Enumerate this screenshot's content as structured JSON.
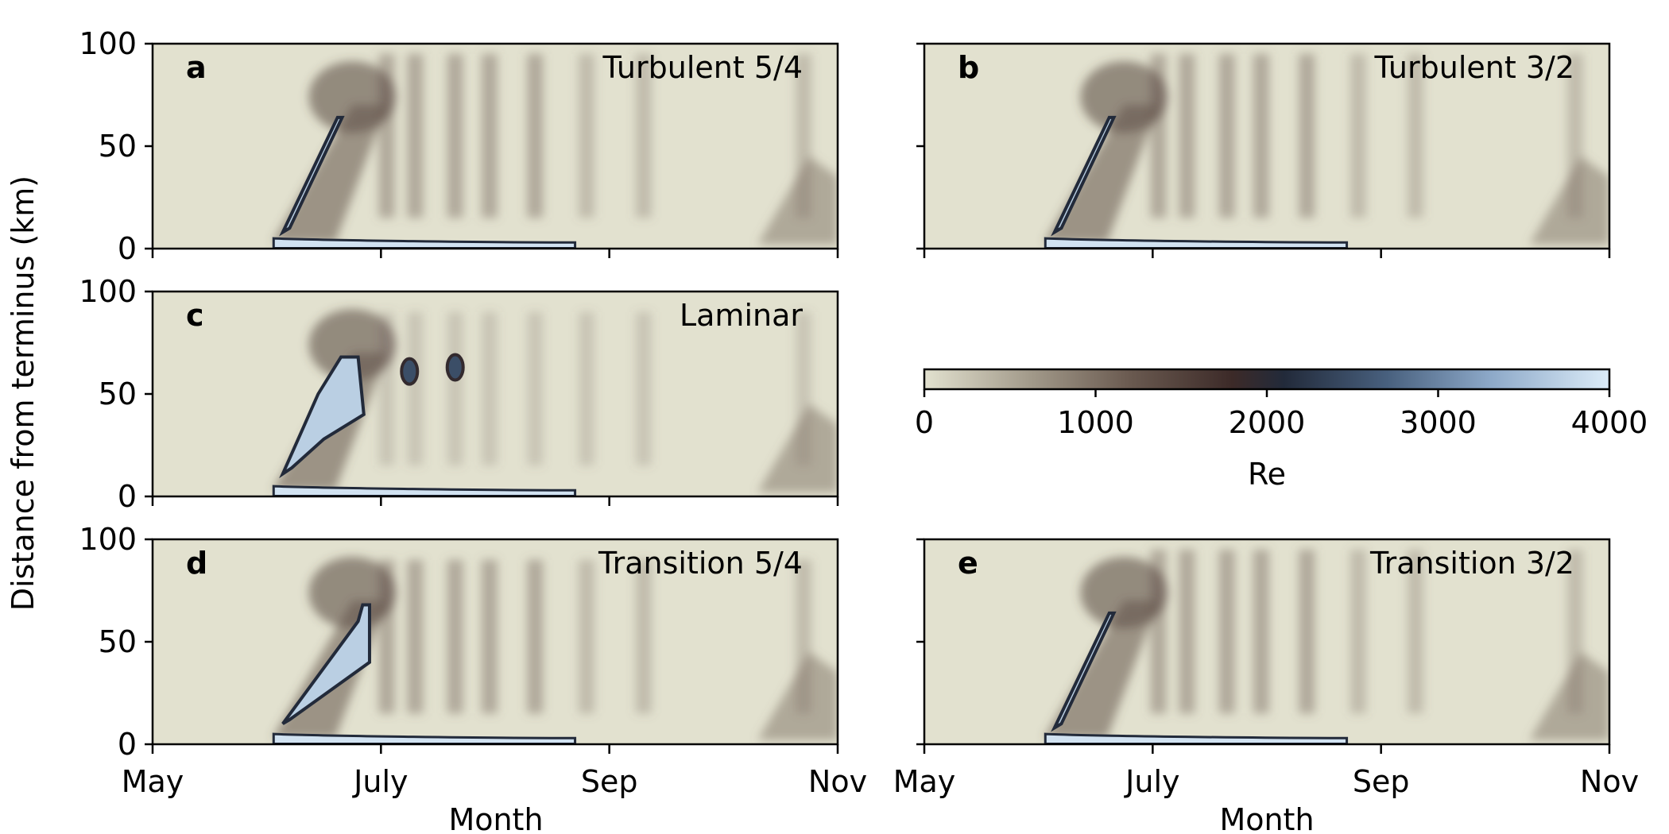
{
  "chart_data": {
    "type": "heatmap",
    "ylabel": "Distance from terminus (km)",
    "xlabel": "Month",
    "x_ticks": [
      "May",
      "July",
      "Sep",
      "Nov"
    ],
    "y_ticks": [
      0,
      50,
      100
    ],
    "xlim": [
      "May",
      "Nov"
    ],
    "ylim": [
      0,
      100
    ],
    "colorbar": {
      "label": "Re",
      "range": [
        0,
        4000
      ],
      "ticks": [
        0,
        1000,
        2000,
        3000,
        4000
      ],
      "stops": [
        {
          "value": 0,
          "color": "#e2e1cf"
        },
        {
          "value": 600,
          "color": "#a49c8c"
        },
        {
          "value": 1200,
          "color": "#6a5a50"
        },
        {
          "value": 1800,
          "color": "#3c2a28"
        },
        {
          "value": 2100,
          "color": "#222a3a"
        },
        {
          "value": 2700,
          "color": "#48607e"
        },
        {
          "value": 3300,
          "color": "#8ca8c8"
        },
        {
          "value": 4000,
          "color": "#dcecf8"
        }
      ]
    },
    "panels": [
      {
        "letter": "a",
        "title": "Turbulent 5/4",
        "plume_extent_km": 64,
        "plume_tip": "narrow"
      },
      {
        "letter": "b",
        "title": "Turbulent 3/2",
        "plume_extent_km": 64,
        "plume_tip": "narrow"
      },
      {
        "letter": "c",
        "title": "Laminar",
        "plume_extent_km": 68,
        "plume_tip": "wide"
      },
      {
        "letter": "d",
        "title": "Transition 5/4",
        "plume_extent_km": 68,
        "plume_tip": "medium"
      },
      {
        "letter": "e",
        "title": "Transition 3/2",
        "plume_extent_km": 64,
        "plume_tip": "narrow"
      }
    ]
  }
}
